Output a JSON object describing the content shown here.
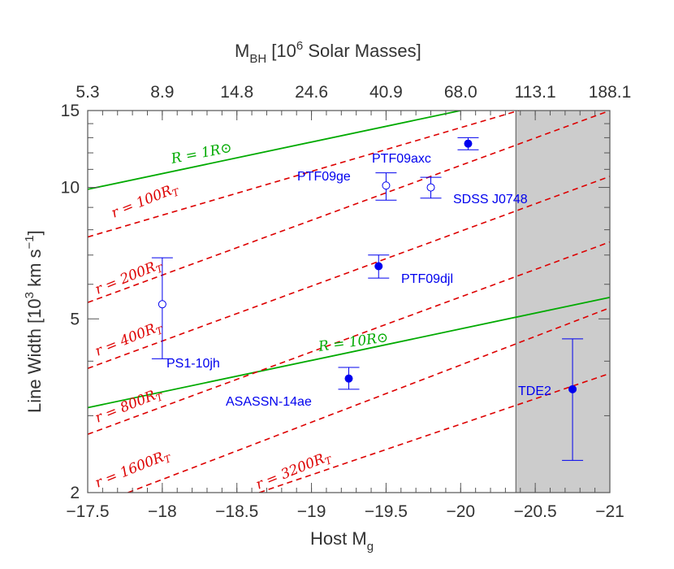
{
  "chart_data": {
    "type": "scatter",
    "xlabel": "Host M_g",
    "ylabel": "Line Width [10^3 km s^-1]",
    "top_xlabel": "M_BH [10^6 Solar Masses]",
    "xlim": [
      -17.5,
      -21
    ],
    "ylim": [
      2,
      15
    ],
    "yscale": "log",
    "grid": false,
    "x_ticks": [
      -17.5,
      -18,
      -18.5,
      -19,
      -19.5,
      -20,
      -20.5,
      -21
    ],
    "x_tick_labels": [
      "−17.5",
      "−18",
      "−18.5",
      "−19",
      "−19.5",
      "−20",
      "−20.5",
      "−21"
    ],
    "y_ticks": [
      2,
      5,
      10,
      15
    ],
    "y_tick_labels": [
      "2",
      "5",
      "10",
      "15"
    ],
    "top_ticks": [
      5.3,
      8.9,
      14.8,
      24.6,
      40.9,
      68.0,
      113.1,
      188.1
    ],
    "top_tick_labels": [
      "5.3",
      "8.9",
      "14.8",
      "24.6",
      "40.9",
      "68.0",
      "113.1",
      "188.1"
    ],
    "shaded_region": {
      "x": [
        -20.37,
        -21
      ],
      "color": "#cccccc"
    },
    "points": [
      {
        "name": "PS1-10jh",
        "x": -18.0,
        "y": 5.4,
        "yerr_low": 4.05,
        "yerr_high": 6.9,
        "filled": false
      },
      {
        "name": "PTF09ge",
        "x": -19.5,
        "y": 10.1,
        "yerr_low": 9.35,
        "yerr_high": 10.8,
        "filled": false
      },
      {
        "name": "SDSS J0748",
        "x": -19.8,
        "y": 10.0,
        "yerr_low": 9.45,
        "yerr_high": 10.55,
        "filled": false
      },
      {
        "name": "PTF09axc",
        "x": -20.05,
        "y": 12.6,
        "yerr_low": 12.2,
        "yerr_high": 13.0,
        "filled": true
      },
      {
        "name": "PTF09djl",
        "x": -19.45,
        "y": 6.6,
        "yerr_low": 6.2,
        "yerr_high": 7.0,
        "filled": true
      },
      {
        "name": "ASASSN-14ae",
        "x": -19.25,
        "y": 3.65,
        "yerr_low": 3.45,
        "yerr_high": 3.87,
        "filled": true
      },
      {
        "name": "TDE2",
        "x": -20.75,
        "y": 3.45,
        "yerr_low": 2.37,
        "yerr_high": 4.5,
        "filled": true
      }
    ],
    "point_color": "#0000ee",
    "lines_green": [
      {
        "label": "R = 1R⊙",
        "x": [
          -17.5,
          -20.0
        ],
        "y": [
          9.9,
          15.0
        ]
      },
      {
        "label": "R = 10R⊙",
        "x": [
          -17.5,
          -21.0
        ],
        "y": [
          3.13,
          5.6
        ]
      }
    ],
    "green_color": "#00aa00",
    "lines_red_dashed": [
      {
        "label": "r = 100R_T",
        "x": [
          -17.5,
          -20.39
        ],
        "y": [
          7.7,
          15.0
        ]
      },
      {
        "label": "r = 200R_T",
        "x": [
          -17.5,
          -21.0
        ],
        "y": [
          5.45,
          15.0
        ]
      },
      {
        "label": "r = 400R_T",
        "x": [
          -17.5,
          -21.0
        ],
        "y": [
          3.85,
          10.6
        ]
      },
      {
        "label": "r = 800R_T",
        "x": [
          -17.5,
          -21.0
        ],
        "y": [
          2.72,
          7.5
        ]
      },
      {
        "label": "r = 1600R_T",
        "x": [
          -17.77,
          -21.0
        ],
        "y": [
          2.0,
          5.3
        ]
      },
      {
        "label": "r = 3200R_T",
        "x": [
          -18.65,
          -21.0
        ],
        "y": [
          2.0,
          3.75
        ]
      }
    ],
    "red_color": "#dd0000",
    "line_labels": {
      "r1": "R = 1R⊙",
      "r10": "R = 10R⊙",
      "rt100": "r = 100R",
      "rt200": "r = 200R",
      "rt400": "r = 400R",
      "rt800": "r = 800R",
      "rt1600": "r = 1600R",
      "rt3200": "r = 3200R",
      "sub": "T"
    }
  }
}
